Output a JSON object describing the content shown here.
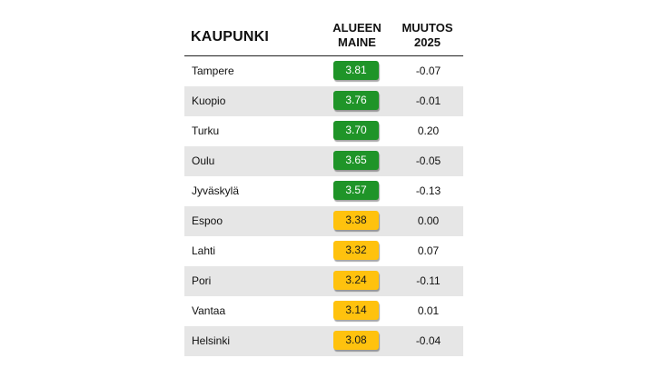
{
  "header": {
    "city_label": "KAUPUNKI",
    "score_label_line1": "ALUEEN",
    "score_label_line2": "MAINE",
    "change_label_line1": "MUUTOS",
    "change_label_line2": "2025"
  },
  "colors": {
    "green": "#1f9428",
    "yellow": "#ffc20e",
    "row_shade": "#e6e6e6"
  },
  "chart_data": {
    "type": "table",
    "columns": [
      "KAUPUNKI",
      "ALUEEN MAINE",
      "MUUTOS 2025"
    ],
    "rows": [
      {
        "city": "Tampere",
        "score": "3.81",
        "change": "-0.07",
        "color": "green"
      },
      {
        "city": "Kuopio",
        "score": "3.76",
        "change": "-0.01",
        "color": "green"
      },
      {
        "city": "Turku",
        "score": "3.70",
        "change": "0.20",
        "color": "green"
      },
      {
        "city": "Oulu",
        "score": "3.65",
        "change": "-0.05",
        "color": "green"
      },
      {
        "city": "Jyväskylä",
        "score": "3.57",
        "change": "-0.13",
        "color": "green"
      },
      {
        "city": "Espoo",
        "score": "3.38",
        "change": "0.00",
        "color": "yellow"
      },
      {
        "city": "Lahti",
        "score": "3.32",
        "change": "0.07",
        "color": "yellow"
      },
      {
        "city": "Pori",
        "score": "3.24",
        "change": "-0.11",
        "color": "yellow"
      },
      {
        "city": "Vantaa",
        "score": "3.14",
        "change": "0.01",
        "color": "yellow"
      },
      {
        "city": "Helsinki",
        "score": "3.08",
        "change": "-0.04",
        "color": "yellow"
      }
    ]
  }
}
